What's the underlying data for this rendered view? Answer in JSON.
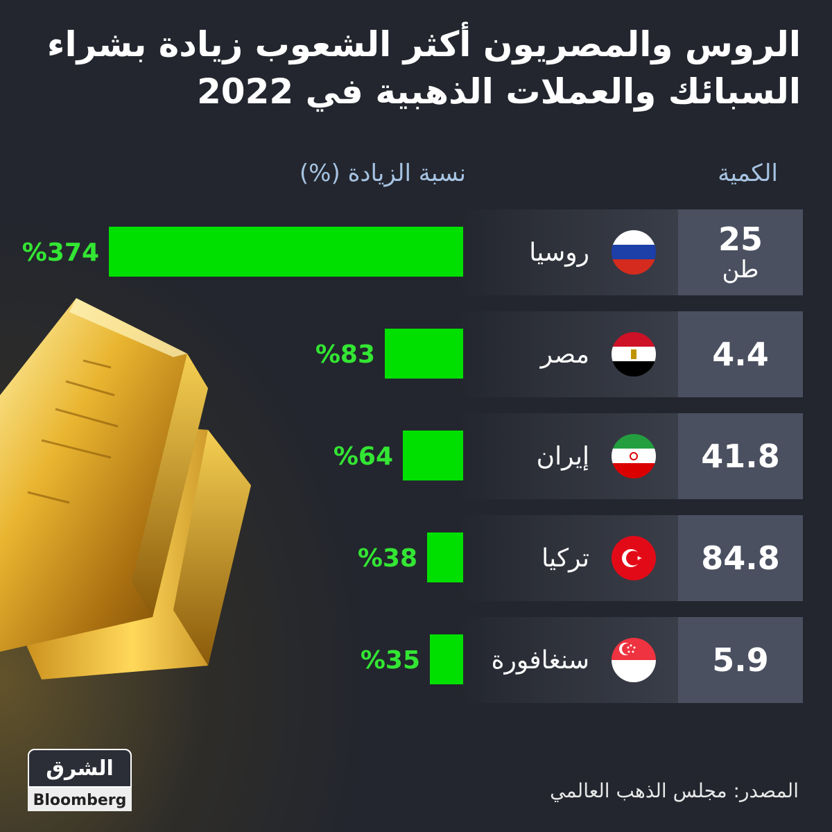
{
  "title": "الروس والمصريون أكثر الشعوب زيادة بشراء السبائك والعملات الذهبية في 2022",
  "headers": {
    "quantity": "الكمية",
    "increase": "نسبة الزيادة (%)"
  },
  "source": "المصدر: مجلس الذهب العالمي",
  "logo": {
    "arabic": "الشرق",
    "english": "Bloomberg"
  },
  "chart_data": {
    "type": "bar",
    "title": "الروس والمصريون أكثر الشعوب زيادة بشراء السبائك والعملات الذهبية في 2022",
    "categories": [
      "روسيا",
      "مصر",
      "إيران",
      "تركيا",
      "سنغافورة"
    ],
    "series": [
      {
        "name": "نسبة الزيادة (%)",
        "values": [
          374,
          83,
          64,
          38,
          35
        ]
      }
    ],
    "quantities": [
      25,
      4.4,
      41.8,
      84.8,
      5.9
    ],
    "quantity_unit": "طن",
    "ylim": [
      0,
      374
    ]
  },
  "rows": [
    {
      "country": "روسيا",
      "quantity": "25",
      "unit": "طن",
      "pct_label": "%374",
      "flag": "russia-flag-icon"
    },
    {
      "country": "مصر",
      "quantity": "4.4",
      "unit": "",
      "pct_label": "%83",
      "flag": "egypt-flag-icon"
    },
    {
      "country": "إيران",
      "quantity": "41.8",
      "unit": "",
      "pct_label": "%64",
      "flag": "iran-flag-icon"
    },
    {
      "country": "تركيا",
      "quantity": "84.8",
      "unit": "",
      "pct_label": "%38",
      "flag": "turkey-flag-icon"
    },
    {
      "country": "سنغافورة",
      "quantity": "5.9",
      "unit": "",
      "pct_label": "%35",
      "flag": "singapore-flag-icon"
    }
  ],
  "colors": {
    "bar": "#00e000",
    "pct_text": "#33e633",
    "header": "#a6c3e2",
    "background": "#23262e"
  }
}
